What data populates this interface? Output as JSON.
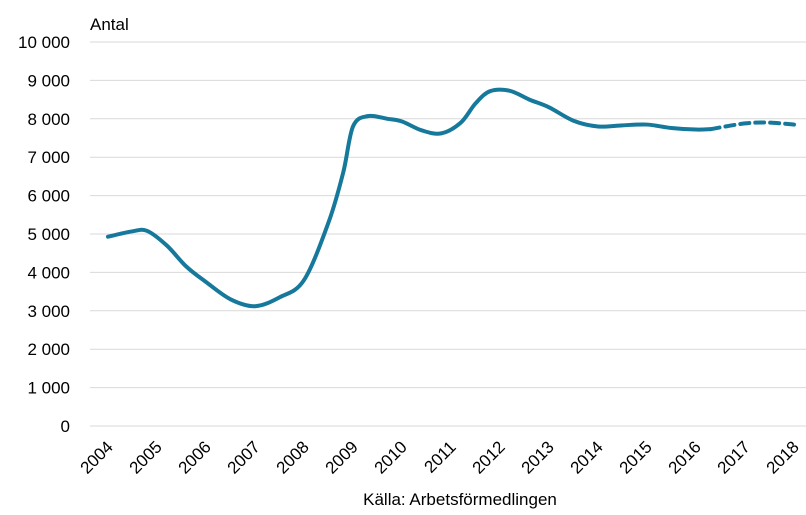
{
  "chart_data": {
    "type": "line",
    "y_label": "Antal",
    "source": "Källa: Arbetsförmedlingen",
    "x": [
      2004,
      2004.5,
      2004.8,
      2005.2,
      2005.6,
      2006,
      2006.5,
      2007,
      2007.5,
      2008,
      2008.5,
      2008.8,
      2009,
      2009.3,
      2009.7,
      2010,
      2010.4,
      2010.8,
      2011.2,
      2011.5,
      2011.8,
      2012.2,
      2012.6,
      2013,
      2013.5,
      2014,
      2014.5,
      2015,
      2015.5,
      2016,
      2016.3,
      2017,
      2017.5,
      2018
    ],
    "series": [
      {
        "color": "#16799b",
        "dashed": false,
        "values": [
          4930,
          5070,
          5080,
          4700,
          4150,
          3750,
          3300,
          3120,
          3350,
          3800,
          5300,
          6600,
          7800,
          8070,
          8000,
          7930,
          7700,
          7620,
          7900,
          8400,
          8720,
          8730,
          8500,
          8300,
          7950,
          7800,
          7830,
          7850,
          7760,
          7720,
          7730,
          null,
          null,
          null
        ]
      },
      {
        "color": "#16799b",
        "dashed": true,
        "values": [
          null,
          null,
          null,
          null,
          null,
          null,
          null,
          null,
          null,
          null,
          null,
          null,
          null,
          null,
          null,
          null,
          null,
          null,
          null,
          null,
          null,
          null,
          null,
          null,
          null,
          null,
          null,
          null,
          null,
          null,
          7730,
          7880,
          7900,
          7850
        ]
      }
    ],
    "xlim": [
      2004,
      2018
    ],
    "xticks": [
      2004,
      2005,
      2006,
      2007,
      2008,
      2009,
      2010,
      2011,
      2012,
      2013,
      2014,
      2015,
      2016,
      2017,
      2018
    ],
    "ylim": [
      0,
      10000
    ],
    "yticks": [
      0,
      {
        "value": 1000,
        "label": "1 000"
      },
      {
        "value": 2000,
        "label": "2 000"
      },
      {
        "value": 3000,
        "label": "3 000"
      },
      {
        "value": 4000,
        "label": "4 000"
      },
      {
        "value": 5000,
        "label": "5 000"
      },
      {
        "value": 6000,
        "label": "6 000"
      },
      {
        "value": 7000,
        "label": "7 000"
      },
      {
        "value": 8000,
        "label": "8 000"
      },
      {
        "value": 9000,
        "label": "9 000"
      },
      {
        "value": 10000,
        "label": "10 000"
      }
    ],
    "grid": true
  }
}
